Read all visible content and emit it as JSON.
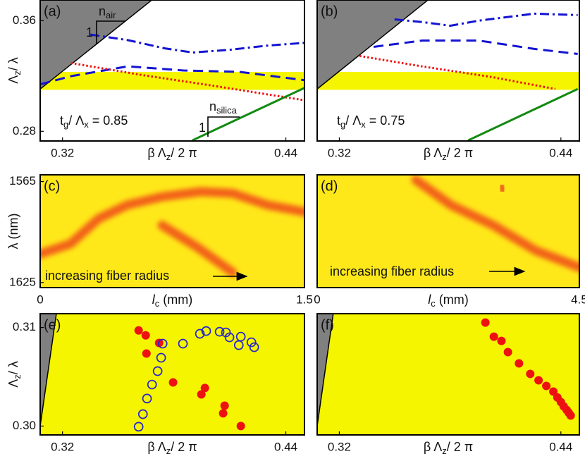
{
  "chart_data": [
    {
      "type": "line",
      "panel_label": "(a)",
      "xlim": [
        0.308,
        0.45
      ],
      "ylim": [
        0.273,
        0.375
      ],
      "xticks": [
        0.32,
        0.44
      ],
      "yticks": [
        0.28,
        0.36
      ],
      "xlabel": [
        "β Λ",
        "z",
        "/ 2 π"
      ],
      "ylabel": [
        "Λ",
        "z",
        "/ λ"
      ],
      "band": {
        "ylim": [
          0.31,
          0.323
        ],
        "color": "#f5f500"
      },
      "series": [
        {
          "style": "fill",
          "color": "#808080",
          "x": [
            0.308,
            0.368
          ],
          "values": [
            0.3106,
            0.375
          ]
        },
        {
          "style": "dashdot",
          "color": "#1414d2",
          "x": [
            0.335,
            0.355,
            0.375,
            0.39,
            0.41,
            0.43,
            0.45
          ],
          "values": [
            0.35,
            0.346,
            0.34,
            0.337,
            0.339,
            0.342,
            0.344
          ]
        },
        {
          "style": "dashed",
          "color": "#1414d2",
          "x": [
            0.308,
            0.325,
            0.355,
            0.385,
            0.415,
            0.45
          ],
          "values": [
            0.314,
            0.32,
            0.327,
            0.324,
            0.323,
            0.317
          ]
        },
        {
          "style": "dotted",
          "color": "#ee1111",
          "x": [
            0.3245,
            0.3624,
            0.4003,
            0.4503
          ],
          "values": [
            0.3294,
            0.3208,
            0.3131,
            0.3024
          ]
        },
        {
          "style": "solid",
          "color": "#128a12",
          "x": [
            0.3897,
            0.4503
          ],
          "values": [
            0.2734,
            0.3116
          ]
        }
      ],
      "annotations": [
        [
          "1"
        ],
        [
          "n",
          "air"
        ],
        [
          "1"
        ],
        [
          "n",
          "silica"
        ],
        [
          "t",
          "g",
          "/ Λ",
          "x",
          " = 0.85"
        ]
      ]
    },
    {
      "type": "line",
      "panel_label": "(b)",
      "xlim": [
        0.308,
        0.45
      ],
      "ylim": [
        0.273,
        0.375
      ],
      "xticks": [
        0.32,
        0.44
      ],
      "xlabel": [
        "β Λ",
        "z",
        "/ 2 π"
      ],
      "band": {
        "ylim": [
          0.31,
          0.323
        ],
        "color": "#f5f500"
      },
      "series": [
        {
          "style": "fill",
          "color": "#808080",
          "x": [
            0.308,
            0.368
          ],
          "values": [
            0.3106,
            0.375
          ]
        },
        {
          "style": "dashdot",
          "color": "#1414d2",
          "x": [
            0.3499,
            0.3651,
            0.3802,
            0.3953,
            0.4256,
            0.4491
          ],
          "values": [
            0.361,
            0.359,
            0.3564,
            0.36,
            0.3651,
            0.3641
          ]
        },
        {
          "style": "dashed",
          "color": "#1414d2",
          "x": [
            0.3386,
            0.3651,
            0.3953,
            0.4256,
            0.4491
          ],
          "values": [
            0.3411,
            0.3457,
            0.3457,
            0.3396,
            0.336
          ]
        },
        {
          "style": "dotted",
          "color": "#ee1111",
          "x": [
            0.331,
            0.3651,
            0.4029,
            0.437
          ],
          "values": [
            0.3345,
            0.3269,
            0.3192,
            0.3106
          ]
        },
        {
          "style": "solid",
          "color": "#128a12",
          "x": [
            0.3897,
            0.4491
          ],
          "values": [
            0.2734,
            0.3106
          ]
        }
      ],
      "annotations": [
        [
          "t",
          "g",
          "/ Λ",
          "x",
          " = 0.75"
        ]
      ]
    },
    {
      "type": "heatmap",
      "panel_label": "(c)",
      "xlim": [
        0,
        1.5
      ],
      "ylim": [
        1561,
        1628
      ],
      "y_reversed": true,
      "xticks": [
        0,
        1.5
      ],
      "yticks": [
        1565,
        1625
      ],
      "xlabel": [
        "l",
        "c",
        "  (mm)"
      ],
      "ylabel": [
        "λ (nm)"
      ],
      "background": "#ffe81a",
      "ridge_color": "#f04a14",
      "ridges": [
        {
          "x": [
            0,
            0.172,
            0.332,
            0.492,
            0.692,
            0.912,
            1.092,
            1.292,
            1.5
          ],
          "values": [
            1608,
            1602,
            1587,
            1579,
            1574,
            1571,
            1572,
            1579,
            1583
          ]
        },
        {
          "x": [
            0.692,
            0.892,
            1.092
          ],
          "values": [
            1591,
            1604,
            1619
          ]
        }
      ],
      "annotations": [
        [
          "increasing fiber radius"
        ]
      ]
    },
    {
      "type": "heatmap",
      "panel_label": "(d)",
      "xlim": [
        0,
        4.5
      ],
      "ylim": [
        1561,
        1628
      ],
      "y_reversed": true,
      "xticks": [
        0,
        {
          "value": 4.5,
          "label": "4.5"
        }
      ],
      "xlabel": [
        "l",
        "c",
        "  (mm)"
      ],
      "background": "#ffe81a",
      "ridge_color": "#f04a14",
      "ridges": [
        {
          "x": [
            1.694,
            2.298,
            3.024,
            3.75,
            4.5
          ],
          "values": [
            1564,
            1579,
            1591,
            1606,
            1616
          ]
        },
        {
          "x": [
            3.15,
            3.2
          ],
          "values": [
            1568,
            1570
          ]
        }
      ],
      "annotations": [
        [
          "increasing fiber radius"
        ]
      ]
    },
    {
      "type": "scatter",
      "panel_label": "(e)",
      "xlim": [
        0.308,
        0.45
      ],
      "ylim": [
        0.2991,
        0.3114
      ],
      "xticks": [
        0.32,
        0.44
      ],
      "yticks": [
        {
          "value": 0.3,
          "label": "0.30"
        },
        0.31
      ],
      "xlabel": [
        "β Λ",
        "z",
        "/ 2 π"
      ],
      "ylabel": [
        "Λ",
        "z",
        "/ λ"
      ],
      "background": "#f5f500",
      "series": [
        {
          "style": "fill",
          "color": "#808080",
          "x": [
            0.308,
            0.3167
          ],
          "values": [
            0.3,
            0.3114
          ]
        },
        {
          "style": "filled",
          "color": "#ee1111",
          "x": [
            0.3609,
            0.3647,
            0.3719,
            0.3651,
            0.3794,
            0.3965,
            0.3946,
            0.4071,
            0.4063,
            0.4158
          ],
          "values": [
            0.3097,
            0.3092,
            0.30843,
            0.30736,
            0.30443,
            0.30386,
            0.30321,
            0.30207,
            0.30129,
            0.3
          ]
        },
        {
          "style": "open",
          "color": "#2424cc",
          "x": [
            0.3609,
            0.3632,
            0.3654,
            0.3681,
            0.3711,
            0.373,
            0.3738,
            0.3847,
            0.3938,
            0.3972,
            0.4044,
            0.4078,
            0.4097,
            0.4158,
            0.4147,
            0.4215,
            0.423
          ],
          "values": [
            0.29993,
            0.30121,
            0.30279,
            0.30421,
            0.30557,
            0.30693,
            0.30836,
            0.30836,
            0.30936,
            0.30964,
            0.30957,
            0.3095,
            0.309,
            0.30907,
            0.30821,
            0.3085,
            0.308
          ]
        }
      ]
    },
    {
      "type": "scatter",
      "panel_label": "(f)",
      "xlim": [
        0.308,
        0.45
      ],
      "ylim": [
        0.2991,
        0.3114
      ],
      "xticks": [
        0.32,
        0.44
      ],
      "xlabel": [
        "β Λ",
        "z",
        "/ 2 π"
      ],
      "background": "#f5f500",
      "series": [
        {
          "style": "fill",
          "color": "#808080",
          "x": [
            0.308,
            0.3167
          ],
          "values": [
            0.3,
            0.3114
          ]
        },
        {
          "style": "filled",
          "color": "#ee1111",
          "x": [
            0.3991,
            0.4037,
            0.4078,
            0.4113,
            0.4173,
            0.4234,
            0.4279,
            0.4321,
            0.4359,
            0.4381,
            0.44,
            0.4415,
            0.4431,
            0.4442,
            0.4453
          ],
          "values": [
            0.3105,
            0.30907,
            0.30864,
            0.3075,
            0.30636,
            0.30529,
            0.30464,
            0.30407,
            0.3035,
            0.3029,
            0.30243,
            0.302,
            0.30164,
            0.30136,
            0.30107
          ]
        }
      ]
    }
  ]
}
